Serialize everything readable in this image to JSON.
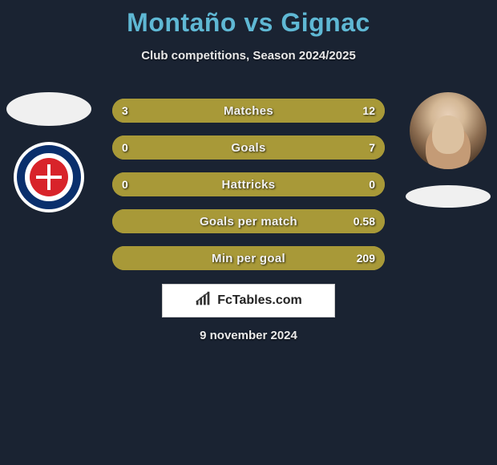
{
  "title": {
    "player1": "Montaño",
    "vs": "vs",
    "player2": "Gignac",
    "color": "#5fb8d4",
    "fontsize": 32
  },
  "subtitle": {
    "text": "Club competitions, Season 2024/2025",
    "color": "#e8e8e8",
    "fontsize": 15
  },
  "background_color": "#1a2332",
  "left": {
    "player_oval_color": "#f0f0f0",
    "club_badge": {
      "outer_bg": "#ffffff",
      "ring_color": "#0a2f6c",
      "inner_color": "#d8232a",
      "cross_color": "#ffffff"
    }
  },
  "right": {
    "player_photo_bg": "#dcc1a0",
    "club_oval_color": "#f0f0f0"
  },
  "bars": {
    "track_color": "#a89938",
    "left_color": "#a89938",
    "right_color": "#a89938",
    "height": 30,
    "radius": 16,
    "gap": 16,
    "label_color": "#f2f2f2",
    "value_color": "#ffffff",
    "label_fontsize": 15,
    "value_fontsize": 14,
    "rows": [
      {
        "label": "Matches",
        "left": "3",
        "right": "12",
        "left_pct": 20,
        "right_pct": 80
      },
      {
        "label": "Goals",
        "left": "0",
        "right": "7",
        "left_pct": 0,
        "right_pct": 100
      },
      {
        "label": "Hattricks",
        "left": "0",
        "right": "0",
        "left_pct": 50,
        "right_pct": 50
      },
      {
        "label": "Goals per match",
        "left": "",
        "right": "0.58",
        "left_pct": 0,
        "right_pct": 100
      },
      {
        "label": "Min per goal",
        "left": "",
        "right": "209",
        "left_pct": 0,
        "right_pct": 100
      }
    ]
  },
  "brand": {
    "text": "FcTables.com",
    "bg": "#ffffff",
    "text_color": "#222222",
    "icon_color": "#333333"
  },
  "date": {
    "text": "9 november 2024",
    "color": "#eaeaea",
    "fontsize": 15
  }
}
